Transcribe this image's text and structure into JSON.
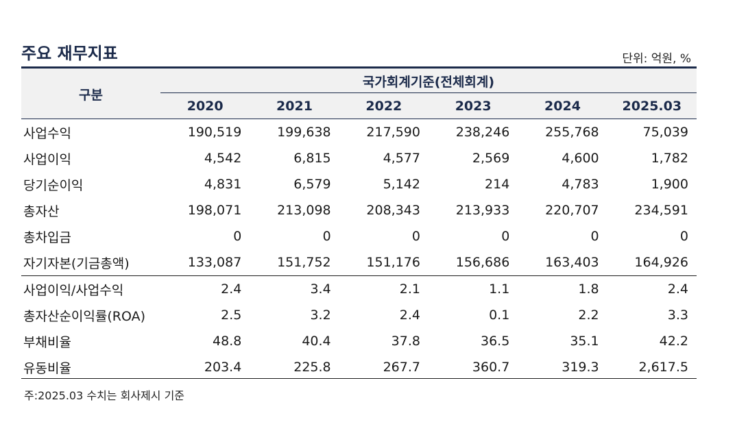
{
  "title": "주요 재무지표",
  "unit": "단위: 억원, %",
  "table": {
    "corner_label": "구분",
    "group_header": "국가회계기준(전체회계)",
    "years": [
      "2020",
      "2021",
      "2022",
      "2023",
      "2024",
      "2025.03"
    ],
    "rows": [
      {
        "label": "사업수익",
        "values": [
          "190,519",
          "199,638",
          "217,590",
          "238,246",
          "255,768",
          "75,039"
        ]
      },
      {
        "label": "사업이익",
        "values": [
          "4,542",
          "6,815",
          "4,577",
          "2,569",
          "4,600",
          "1,782"
        ]
      },
      {
        "label": "당기순이익",
        "values": [
          "4,831",
          "6,579",
          "5,142",
          "214",
          "4,783",
          "1,900"
        ]
      },
      {
        "label": "총자산",
        "values": [
          "198,071",
          "213,098",
          "208,343",
          "213,933",
          "220,707",
          "234,591"
        ]
      },
      {
        "label": "총차입금",
        "values": [
          "0",
          "0",
          "0",
          "0",
          "0",
          "0"
        ]
      },
      {
        "label": "자기자본(기금총액)",
        "values": [
          "133,087",
          "151,752",
          "151,176",
          "156,686",
          "163,403",
          "164,926"
        ]
      },
      {
        "label": "사업이익/사업수익",
        "values": [
          "2.4",
          "3.4",
          "2.1",
          "1.1",
          "1.8",
          "2.4"
        ]
      },
      {
        "label": "총자산순이익률(ROA)",
        "values": [
          "2.5",
          "3.2",
          "2.4",
          "0.1",
          "2.2",
          "3.3"
        ]
      },
      {
        "label": "부채비율",
        "values": [
          "48.8",
          "40.4",
          "37.8",
          "36.5",
          "35.1",
          "42.2"
        ]
      },
      {
        "label": "유동비율",
        "values": [
          "203.4",
          "225.8",
          "267.7",
          "360.7",
          "319.3",
          "2,617.5"
        ]
      }
    ]
  },
  "footnote": "주:2025.03 수치는 회사제시 기준",
  "colors": {
    "header_text": "#1b2a4a",
    "header_background": "#f1f1f1",
    "rule": "#1b2a4a"
  }
}
